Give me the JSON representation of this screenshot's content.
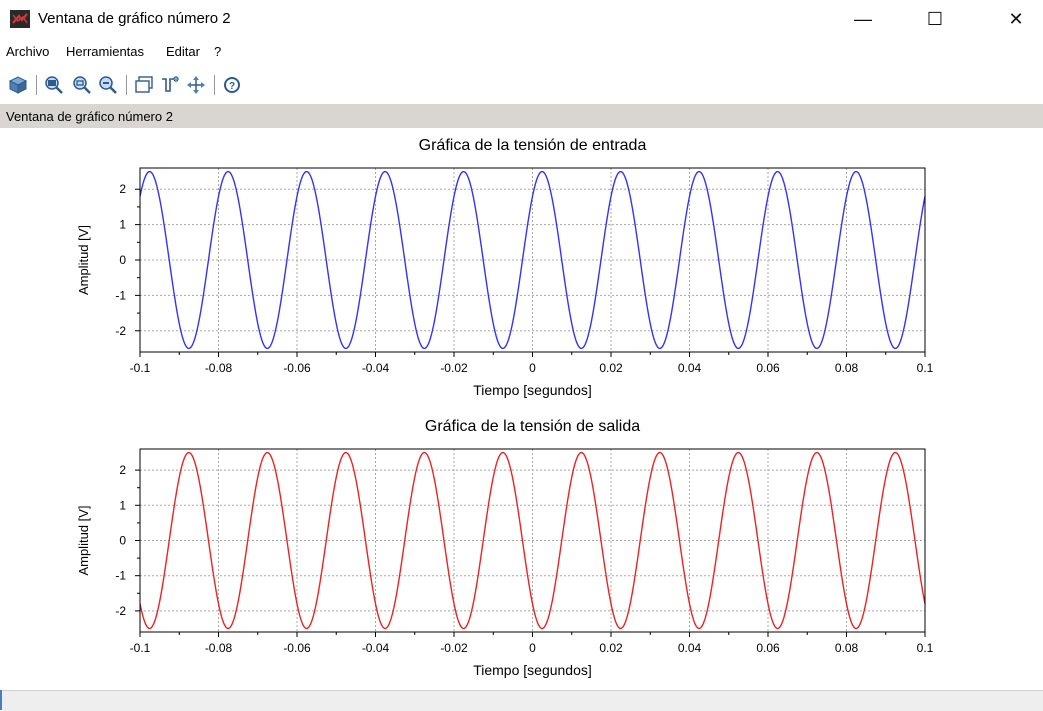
{
  "window": {
    "title": "Ventana de gráfico número 2",
    "minimize_glyph": "—",
    "maximize_glyph": "☐",
    "close_glyph": "✕"
  },
  "menu": [
    {
      "label": "Archivo"
    },
    {
      "label": "Herramientas"
    },
    {
      "label": "Editar"
    },
    {
      "label": "?"
    }
  ],
  "toolbar": {
    "buttons": [
      "rotate-icon",
      "zoom-in-icon",
      "zoom-fit-icon",
      "zoom-out-icon",
      "figure-icon",
      "datatip-icon",
      "pan-icon",
      "help-icon"
    ]
  },
  "status_text": "Ventana de gráfico número 2",
  "colors": {
    "input_series": "#3333ff",
    "output_series": "#ee2222"
  },
  "chart_data": [
    {
      "type": "line",
      "title": "Gráfica de la tensión de entrada",
      "xlabel": "Tiempo [segundos]",
      "ylabel": "Amplitud [V]",
      "xlim": [
        -0.1,
        0.1
      ],
      "ylim": [
        -2.6,
        2.6
      ],
      "xticks": [
        "-0.1",
        "-0.08",
        "-0.06",
        "-0.04",
        "-0.02",
        "0",
        "0.02",
        "0.04",
        "0.06",
        "0.08",
        "0.1"
      ],
      "yticks": [
        "2",
        "1",
        "0",
        "-1",
        "-2"
      ],
      "grid": true,
      "series": [
        {
          "amplitude": 2.5,
          "frequency_hz": 50,
          "phase_deg": 46,
          "samples": 801,
          "color": "#3333ff"
        }
      ]
    },
    {
      "type": "line",
      "title": "Gráfica de la tensión de salida",
      "xlabel": "Tiempo [segundos]",
      "ylabel": "Amplitud [V]",
      "xlim": [
        -0.1,
        0.1
      ],
      "ylim": [
        -2.6,
        2.6
      ],
      "xticks": [
        "-0.1",
        "-0.08",
        "-0.06",
        "-0.04",
        "-0.02",
        "0",
        "0.02",
        "0.04",
        "0.06",
        "0.08",
        "0.1"
      ],
      "yticks": [
        "2",
        "1",
        "0",
        "-1",
        "-2"
      ],
      "grid": true,
      "series": [
        {
          "amplitude": 2.5,
          "frequency_hz": 50,
          "phase_deg": -134,
          "samples": 801,
          "color": "#ee2222"
        }
      ]
    }
  ]
}
